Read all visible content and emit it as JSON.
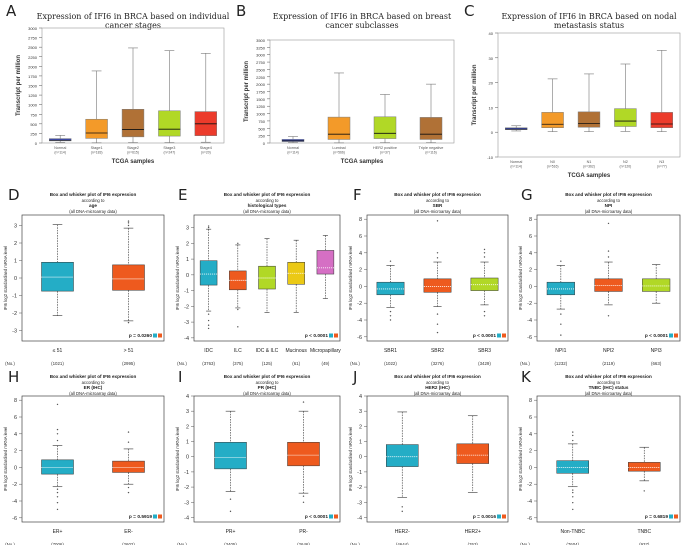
{
  "chart_data": [
    {
      "panel": "A",
      "type": "box",
      "group": "top",
      "style": "ualcan",
      "title": "Expression of IFI6 in BRCA based on individual cancer stages",
      "ylabel": "Transcript per million",
      "xlabel": "TCGA samples",
      "yticks": [
        0,
        250,
        500,
        750,
        1000,
        1250,
        1500,
        1750,
        2000,
        2250,
        2500,
        2750,
        3000
      ],
      "ylim": [
        0,
        3000
      ],
      "categories": [
        "Normal",
        "Stage1",
        "Stage2",
        "Stage3",
        "Stage4"
      ],
      "counts": [
        "(n=114)",
        "(n=183)",
        "(n=615)",
        "(n=247)",
        "(n=20)"
      ],
      "colors": [
        "#4a5bd4",
        "#f39a29",
        "#b07136",
        "#b1d826",
        "#ec3b2b"
      ],
      "boxes": [
        {
          "min": 15,
          "q1": 55,
          "median": 75,
          "q3": 115,
          "max": 200
        },
        {
          "min": 5,
          "q1": 120,
          "median": 260,
          "q3": 620,
          "max": 1880
        },
        {
          "min": 10,
          "q1": 160,
          "median": 350,
          "q3": 880,
          "max": 2480
        },
        {
          "min": 10,
          "q1": 180,
          "median": 360,
          "q3": 840,
          "max": 2410
        },
        {
          "min": 20,
          "q1": 190,
          "median": 500,
          "q3": 820,
          "max": 2340
        }
      ]
    },
    {
      "panel": "B",
      "type": "box",
      "group": "top",
      "style": "ualcan",
      "title": "Expression of IFI6 in BRCA based on breast cancer subclasses",
      "ylabel": "Transcript per million",
      "xlabel": "TCGA samples",
      "yticks": [
        0,
        250,
        500,
        750,
        1000,
        1250,
        1500,
        1750,
        2000,
        2250,
        2500,
        2750,
        3000,
        3250,
        3500
      ],
      "ylim": [
        0,
        3500
      ],
      "categories": [
        "Normal",
        "Luminal",
        "HER2 positive",
        "Triple negative"
      ],
      "counts": [
        "(n=114)",
        "(n=566)",
        "(n=37)",
        "(n=116)"
      ],
      "colors": [
        "#4a5bd4",
        "#f39a29",
        "#b1d826",
        "#b07136"
      ],
      "boxes": [
        {
          "min": 15,
          "q1": 50,
          "median": 75,
          "q3": 125,
          "max": 220
        },
        {
          "min": 5,
          "q1": 120,
          "median": 300,
          "q3": 880,
          "max": 2380
        },
        {
          "min": 10,
          "q1": 150,
          "median": 330,
          "q3": 890,
          "max": 1650
        },
        {
          "min": 10,
          "q1": 120,
          "median": 300,
          "q3": 870,
          "max": 2000
        }
      ]
    },
    {
      "panel": "C",
      "type": "box",
      "group": "top",
      "style": "ualcan",
      "title": "Expression of IFI6 in BRCA based on nodal metastasis status",
      "ylabel": "Transcript per million",
      "xlabel": "TCGA samples",
      "yticks": [
        -10,
        0,
        10,
        20,
        30,
        40
      ],
      "ylim": [
        -10,
        40
      ],
      "categories": [
        "Normal",
        "N0",
        "N1",
        "N2",
        "N3"
      ],
      "counts": [
        "(n=114)",
        "(n=516)",
        "(n=362)",
        "(n=120)",
        "(n=77)"
      ],
      "colors": [
        "#4a5bd4",
        "#f39a29",
        "#b07136",
        "#b1d826",
        "#ec3b2b"
      ],
      "boxes": [
        {
          "min": 0.5,
          "q1": 1.0,
          "median": 1.3,
          "q3": 1.8,
          "max": 2.6
        },
        {
          "min": 0.2,
          "q1": 1.8,
          "median": 3.2,
          "q3": 8.0,
          "max": 21.5
        },
        {
          "min": 0.2,
          "q1": 2.0,
          "median": 3.5,
          "q3": 8.2,
          "max": 23.5
        },
        {
          "min": 0.3,
          "q1": 2.3,
          "median": 4.5,
          "q3": 9.5,
          "max": 27.5
        },
        {
          "min": 0.2,
          "q1": 1.8,
          "median": 3.3,
          "q3": 8.0,
          "max": 33.0
        }
      ]
    },
    {
      "panel": "D",
      "type": "box",
      "group": "bottom",
      "title": "Box and whisker plot of IFI6 expression",
      "subtitle": "according to",
      "variable": "age",
      "note": "(all DNA-microarray data)",
      "ylabel": "IFI6 log2 standardised mRNA level",
      "yticks": [
        -3,
        -2,
        -1,
        0,
        1,
        2,
        3
      ],
      "ylim": [
        -3.6,
        3.6
      ],
      "categories": [
        "≤ 51",
        "> 51"
      ],
      "counts": [
        "(1021)",
        "(2995)"
      ],
      "colors": [
        "#24adc6",
        "#ee5a1e"
      ],
      "pvalue": "p = 0.0260",
      "n_label": "(No.)",
      "boxes": [
        {
          "min": -2.15,
          "q1": -0.75,
          "median": 0.05,
          "q3": 0.9,
          "max": 3.05
        },
        {
          "min": -2.45,
          "q1": -0.7,
          "median": -0.05,
          "q3": 0.75,
          "max": 2.85,
          "outliers": [
            3.0,
            3.15,
            3.25,
            -2.55
          ]
        }
      ]
    },
    {
      "panel": "E",
      "type": "box",
      "group": "bottom",
      "title": "Box and whisker plot of IFI6 expression",
      "subtitle": "according to",
      "variable": "histological types",
      "note": "(all DNA-microarray data)",
      "ylabel": "IFI6 log2 standardised mRNA level",
      "yticks": [
        -4,
        -3,
        -2,
        -1,
        0,
        1,
        2,
        3
      ],
      "ylim": [
        -4.2,
        3.8
      ],
      "categories": [
        "IDC",
        "ILC",
        "IDC & ILC",
        "Mucinous",
        "Micropapillary"
      ],
      "counts": [
        "(3763)",
        "(375)",
        "(125)",
        "(61)",
        "(49)"
      ],
      "colors": [
        "#24adc6",
        "#ee5a1e",
        "#b1d826",
        "#ebc915",
        "#d56fc4"
      ],
      "pvalue": "p < 0.0001",
      "n_label": "(No.)",
      "boxes": [
        {
          "min": -2.3,
          "q1": -0.65,
          "median": 0.05,
          "q3": 0.9,
          "max": 2.9,
          "outliers": [
            3.0,
            3.1,
            -2.5,
            -2.9,
            -3.2,
            -3.4
          ]
        },
        {
          "min": -2.1,
          "q1": -0.95,
          "median": -0.35,
          "q3": 0.25,
          "max": 1.9,
          "outliers": [
            2.0,
            -2.2,
            -3.3
          ]
        },
        {
          "min": -2.4,
          "q1": -0.9,
          "median": -0.2,
          "q3": 0.55,
          "max": 2.3
        },
        {
          "min": -2.4,
          "q1": -0.6,
          "median": 0.1,
          "q3": 0.8,
          "max": 2.2
        },
        {
          "min": -1.5,
          "q1": 0.05,
          "median": 0.45,
          "q3": 1.55,
          "max": 2.5
        }
      ]
    },
    {
      "panel": "F",
      "type": "box",
      "group": "bottom",
      "title": "Box and whisker plot of IFI6 expression",
      "subtitle": "according to",
      "variable": "SBR",
      "note": "(all DNA-microarray data)",
      "ylabel": "IFI6 log2 standardised mRNA level",
      "yticks": [
        -6,
        -4,
        -2,
        0,
        2,
        4,
        6,
        8
      ],
      "ylim": [
        -6.5,
        8.5
      ],
      "categories": [
        "SBR1",
        "SBR2",
        "SBR3"
      ],
      "counts": [
        "(1022)",
        "(3276)",
        "(3429)"
      ],
      "colors": [
        "#24adc6",
        "#ee5a1e",
        "#b1d826"
      ],
      "pvalue": "p < 0.0001",
      "n_label": "(No.)",
      "boxes": [
        {
          "min": -2.5,
          "q1": -1.0,
          "median": -0.3,
          "q3": 0.5,
          "max": 2.5,
          "outliers": [
            3.0,
            -3.0,
            -3.5,
            -4.0
          ]
        },
        {
          "min": -2.4,
          "q1": -0.7,
          "median": 0.0,
          "q3": 0.9,
          "max": 2.9,
          "outliers": [
            3.4,
            4.0,
            7.8,
            -3.3,
            -4.5,
            -5.5
          ]
        },
        {
          "min": -2.2,
          "q1": -0.5,
          "median": 0.2,
          "q3": 1.0,
          "max": 2.9,
          "outliers": [
            3.5,
            4.0,
            4.4,
            -3.0,
            -3.5
          ]
        }
      ]
    },
    {
      "panel": "G",
      "type": "box",
      "group": "bottom",
      "title": "Box and whisker plot of IFI6 expression",
      "subtitle": "according to",
      "variable": "NPI",
      "note": "(all DNA-microarray data)",
      "ylabel": "IFI6 log2 standardised mRNA level",
      "yticks": [
        -6,
        -4,
        -2,
        0,
        2,
        4,
        6,
        8
      ],
      "ylim": [
        -6.5,
        8.5
      ],
      "categories": [
        "NPI1",
        "NPI2",
        "NPI3"
      ],
      "counts": [
        "(1232)",
        "(2119)",
        "(663)"
      ],
      "colors": [
        "#24adc6",
        "#ee5a1e",
        "#b1d826"
      ],
      "pvalue": "p < 0.0001",
      "n_label": "(No.)",
      "boxes": [
        {
          "min": -2.7,
          "q1": -1.0,
          "median": -0.3,
          "q3": 0.5,
          "max": 2.5,
          "outliers": [
            3.0,
            -3.3,
            -4.5,
            -5.8
          ]
        },
        {
          "min": -2.2,
          "q1": -0.6,
          "median": 0.1,
          "q3": 0.9,
          "max": 2.9,
          "outliers": [
            3.5,
            4.2,
            7.5,
            -3.5
          ]
        },
        {
          "min": -2.0,
          "q1": -0.6,
          "median": 0.05,
          "q3": 0.9,
          "max": 2.6
        }
      ]
    },
    {
      "panel": "H",
      "type": "box",
      "group": "bottom",
      "title": "Box and whisker plot of IFI6 expression",
      "subtitle": "according to",
      "variable": "ER (IHC)",
      "note": "(all DNA-microarray data)",
      "ylabel": "IFI6 log2 standardised mRNA level",
      "yticks": [
        -6,
        -4,
        -2,
        0,
        2,
        4,
        6,
        8
      ],
      "ylim": [
        -6.5,
        8.5
      ],
      "categories": [
        "ER+",
        "ER-"
      ],
      "counts": [
        "(7006)",
        "(2602)"
      ],
      "colors": [
        "#24adc6",
        "#ee5a1e"
      ],
      "pvalue": "p = 0.5919",
      "n_label": "(No.)",
      "boxes": [
        {
          "min": -2.3,
          "q1": -0.8,
          "median": 0.0,
          "q3": 0.9,
          "max": 2.6,
          "outliers": [
            3.2,
            4.0,
            4.5,
            7.5,
            -2.6,
            -3.0,
            -3.5,
            -4.2,
            -5.0
          ]
        },
        {
          "min": -2.0,
          "q1": -0.6,
          "median": 0.0,
          "q3": 0.75,
          "max": 2.2,
          "outliers": [
            3.0,
            4.2,
            -2.4,
            -3.0
          ]
        }
      ]
    },
    {
      "panel": "I",
      "type": "box",
      "group": "bottom",
      "title": "Box and whisker plot of IFI6 expression",
      "subtitle": "according to",
      "variable": "PR (IHC)",
      "note": "(all DNA-microarray data)",
      "ylabel": "IFI6 log2 standardised mRNA level",
      "yticks": [
        -4,
        -3,
        -2,
        -1,
        0,
        1,
        2,
        3,
        4
      ],
      "ylim": [
        -4.3,
        4.0
      ],
      "categories": [
        "PR+",
        "PR-"
      ],
      "counts": [
        "(3405)",
        "(2646)"
      ],
      "colors": [
        "#24adc6",
        "#ee5a1e"
      ],
      "pvalue": "p < 0.0001",
      "n_label": "(No.)",
      "boxes": [
        {
          "min": -2.3,
          "q1": -0.8,
          "median": -0.05,
          "q3": 0.95,
          "max": 3.0,
          "outliers": [
            -2.8,
            -3.6
          ]
        },
        {
          "min": -2.4,
          "q1": -0.6,
          "median": 0.1,
          "q3": 0.95,
          "max": 3.0,
          "outliers": [
            3.6,
            -2.6,
            -3.0
          ]
        }
      ]
    },
    {
      "panel": "J",
      "type": "box",
      "group": "bottom",
      "title": "Box and whisker plot of IFI6 expression",
      "subtitle": "according to",
      "variable": "HER2 (IHC)",
      "note": "(all DNA-microarray data)",
      "ylabel": "IFI6 log2 standardised mRNA level",
      "yticks": [
        -4,
        -3,
        -2,
        -1,
        0,
        1,
        2,
        3,
        4
      ],
      "ylim": [
        -4.3,
        4.0
      ],
      "categories": [
        "HER2-",
        "HER2+"
      ],
      "counts": [
        "(4644)",
        "(763)"
      ],
      "colors": [
        "#24adc6",
        "#ee5a1e"
      ],
      "pvalue": "p = 0.0016",
      "n_label": "(No.)",
      "boxes": [
        {
          "min": -2.7,
          "q1": -0.65,
          "median": 0.0,
          "q3": 0.8,
          "max": 2.95,
          "outliers": [
            -3.3,
            -3.6
          ]
        },
        {
          "min": -2.35,
          "q1": -0.45,
          "median": 0.1,
          "q3": 0.85,
          "max": 2.7
        }
      ]
    },
    {
      "panel": "K",
      "type": "box",
      "group": "bottom",
      "title": "Box and whisker plot of IFI6 expression",
      "subtitle": "according to",
      "variable": "TNBC (IHC) status",
      "note": "(all DNA-microarray data)",
      "ylabel": "IFI6 log2 standardised mRNA level",
      "yticks": [
        -6,
        -4,
        -2,
        0,
        2,
        4,
        6,
        8
      ],
      "ylim": [
        -6.5,
        8.5
      ],
      "categories": [
        "Non-TNBC",
        "TNBC"
      ],
      "counts": [
        "(7604)",
        "(937)"
      ],
      "colors": [
        "#24adc6",
        "#ee5a1e"
      ],
      "pvalue": "p = 0.6819",
      "n_label": "(No.)",
      "boxes": [
        {
          "min": -2.3,
          "q1": -0.7,
          "median": 0.0,
          "q3": 0.8,
          "max": 2.8,
          "outliers": [
            3.2,
            3.8,
            4.2,
            -2.7,
            -3.0,
            -3.5,
            -4.2,
            -5.0
          ]
        },
        {
          "min": -1.6,
          "q1": -0.45,
          "median": 0.0,
          "q3": 0.6,
          "max": 2.4,
          "outliers": [
            -2.8
          ]
        }
      ]
    }
  ]
}
